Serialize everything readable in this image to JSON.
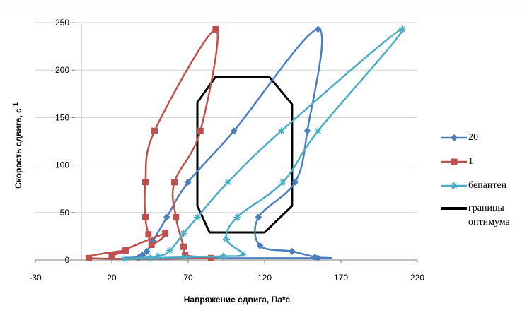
{
  "chart_data": {
    "type": "scatter",
    "xlabel": "Напряжение сдвига, Па*с",
    "ylabel": "Скорость сдвига, с",
    "ylabel_sup": "-1",
    "xlim": [
      -30,
      220
    ],
    "ylim": [
      0,
      250
    ],
    "xticks": [
      -30,
      20,
      70,
      120,
      170,
      220
    ],
    "yticks": [
      0,
      50,
      100,
      150,
      200,
      250
    ],
    "grid": "horizontal",
    "legend_position": "right",
    "series": [
      {
        "name": "20",
        "color": "#4a7ebf",
        "marker": "diamond",
        "points": [
          [
            155,
            2
          ],
          [
            153,
            3
          ],
          [
            138,
            9
          ],
          [
            117,
            15
          ],
          [
            116,
            45
          ],
          [
            140,
            82
          ],
          [
            148,
            136
          ],
          [
            155,
            243
          ],
          [
            100,
            136
          ],
          [
            70,
            82
          ],
          [
            56,
            45
          ],
          [
            47,
            20
          ],
          [
            43,
            9
          ],
          [
            40,
            5
          ],
          [
            38,
            3
          ],
          [
            37,
            2
          ]
        ]
      },
      {
        "name": "1",
        "color": "#c0504d",
        "marker": "square",
        "points": [
          [
            85,
            2
          ],
          [
            68,
            5
          ],
          [
            67,
            14
          ],
          [
            62,
            45
          ],
          [
            61,
            82
          ],
          [
            78,
            136
          ],
          [
            88,
            243
          ],
          [
            48,
            136
          ],
          [
            42,
            82
          ],
          [
            42,
            45
          ],
          [
            44,
            27
          ],
          [
            46,
            16
          ],
          [
            55,
            28
          ],
          [
            20,
            5
          ],
          [
            29,
            10
          ],
          [
            5,
            2
          ]
        ]
      },
      {
        "name": "бепантен",
        "color": "#4bacc6",
        "marker": "asterisk",
        "points": [
          [
            28,
            1
          ],
          [
            45,
            2
          ],
          [
            68,
            3
          ],
          [
            93,
            4
          ],
          [
            106,
            6
          ],
          [
            95,
            22
          ],
          [
            102,
            45
          ],
          [
            132,
            82
          ],
          [
            155,
            136
          ],
          [
            210,
            243
          ],
          [
            131,
            136
          ],
          [
            96,
            82
          ],
          [
            76,
            45
          ],
          [
            67,
            28
          ],
          [
            58,
            10
          ],
          [
            50,
            4
          ]
        ]
      }
    ],
    "region": {
      "name": "границы оптимума",
      "color": "#000000",
      "polygon": [
        [
          88,
          193
        ],
        [
          123,
          193
        ],
        [
          138,
          164
        ],
        [
          138,
          57
        ],
        [
          120,
          29
        ],
        [
          84,
          29
        ],
        [
          76,
          57
        ],
        [
          76,
          166
        ]
      ]
    }
  },
  "legend": [
    {
      "label": "20",
      "color": "#4a7ebf",
      "marker": "diamond"
    },
    {
      "label": "1",
      "color": "#c0504d",
      "marker": "square"
    },
    {
      "label": "бепантен",
      "color": "#4bacc6",
      "marker": "asterisk"
    },
    {
      "label": "границы оптимума",
      "color": "#000000",
      "marker": "line"
    }
  ]
}
